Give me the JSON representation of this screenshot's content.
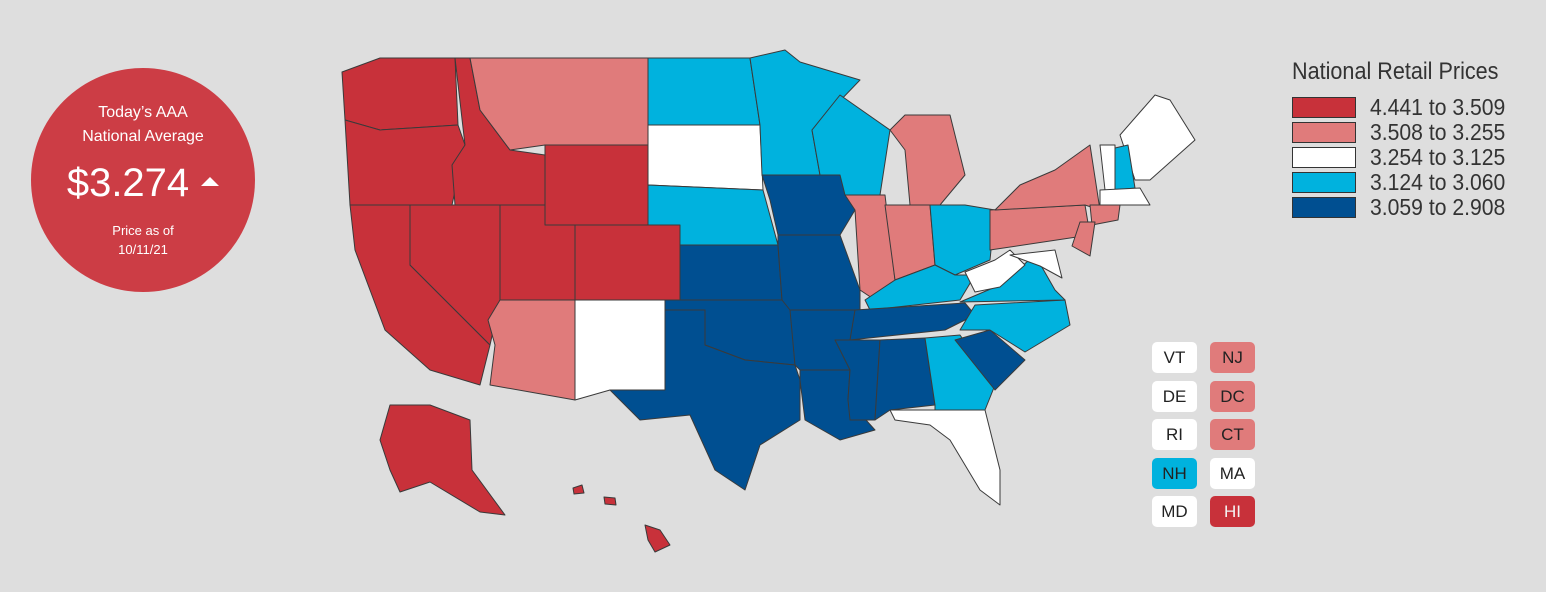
{
  "badge": {
    "title_lines": [
      "Today’s AAA",
      "National Average"
    ],
    "price": "$3.274",
    "date_label": "Price as of",
    "date": "10/11/21"
  },
  "legend": {
    "title": "National Retail Prices",
    "items": [
      {
        "label": "4.441 to 3.509",
        "color": "#c8313a"
      },
      {
        "label": "3.508 to 3.255",
        "color": "#e07b7b"
      },
      {
        "label": "3.254 to 3.125",
        "color": "#ffffff"
      },
      {
        "label": "3.124 to 3.060",
        "color": "#00b2de"
      },
      {
        "label": "3.059 to 2.908",
        "color": "#004f91"
      }
    ]
  },
  "small_states": [
    {
      "label": "VT",
      "color": "#ffffff"
    },
    {
      "label": "NJ",
      "color": "#e07b7b"
    },
    {
      "label": "DE",
      "color": "#ffffff"
    },
    {
      "label": "DC",
      "color": "#e07b7b"
    },
    {
      "label": "RI",
      "color": "#ffffff"
    },
    {
      "label": "CT",
      "color": "#e07b7b"
    },
    {
      "label": "NH",
      "color": "#00b2de"
    },
    {
      "label": "MA",
      "color": "#ffffff"
    },
    {
      "label": "MD",
      "color": "#ffffff"
    },
    {
      "label": "HI",
      "color": "#c8313a"
    }
  ]
}
